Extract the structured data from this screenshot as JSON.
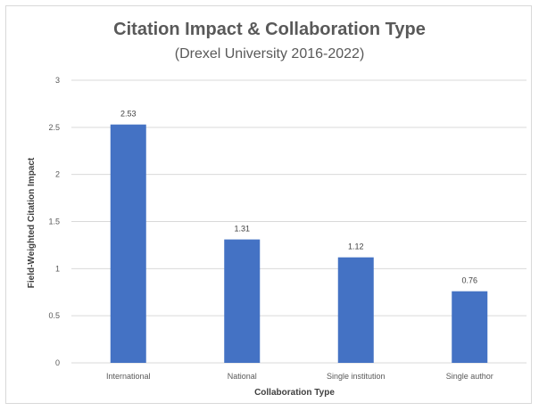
{
  "chart_data": {
    "type": "bar",
    "title": "Citation Impact & Collaboration Type",
    "subtitle": "(Drexel University 2016-2022)",
    "xlabel": "Collaboration Type",
    "ylabel": "Field-Weighted Citation Impact",
    "categories": [
      "International",
      "National",
      "Single institution",
      "Single author"
    ],
    "values": [
      2.53,
      1.31,
      1.12,
      0.76
    ],
    "data_labels": [
      "2.53",
      "1.31",
      "1.12",
      "0.76"
    ],
    "yticks": [
      0,
      0.5,
      1,
      1.5,
      2,
      2.5,
      3
    ],
    "ytick_labels": [
      "0",
      "0.5",
      "1",
      "1.5",
      "2",
      "2.5",
      "3"
    ],
    "ylim": [
      0,
      3
    ],
    "grid": true,
    "legend": "none",
    "bar_color": "#4472c4",
    "grid_color": "#d9d9d9"
  }
}
